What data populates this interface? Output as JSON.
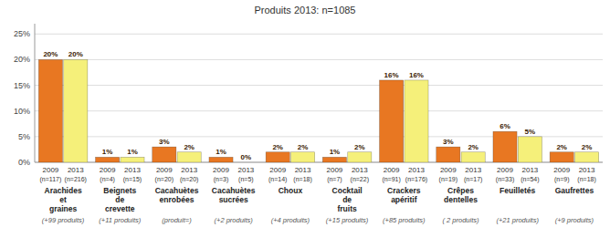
{
  "chart_data": {
    "type": "bar",
    "title": "Produits 2013: n=1085",
    "categories": [
      "Arachides\net\ngraines",
      "Beignets\nde\ncrevette",
      "Cacahuètes\nenrobées",
      "Cacahuètes\nsucrées",
      "Choux",
      "Cocktail\nde\nfruits",
      "Crackers\napéritif",
      "Crêpes\ndentelles",
      "Feuilletés",
      "Gaufrettes"
    ],
    "extra_labels": [
      "(+99 produits)",
      "(+11 produits)",
      "(produit=)",
      "(+2 produits)",
      "(+4 produits)",
      "(+15 produits)",
      "(+85 produits)",
      "( 2 produits)",
      "(+21 produits)",
      "(+9 produits)"
    ],
    "series": [
      {
        "name": "2009",
        "color": "#E87722",
        "values": [
          0.2,
          0.01,
          0.03,
          0.01,
          0.02,
          0.01,
          0.16,
          0.03,
          0.06,
          0.02
        ],
        "value_labels": [
          "20%",
          "1%",
          "3%",
          "1%",
          "2%",
          "1%",
          "16%",
          "3%",
          "6%",
          "2%"
        ],
        "sub_labels": [
          "(n=117)",
          "(n=4)",
          "(n=20)",
          "(n=3)",
          "(n=14)",
          "(n=7)",
          "(n=91)",
          "(n=19)",
          "(n=33)",
          "(n=9)"
        ]
      },
      {
        "name": "2013",
        "color": "#F5F07A",
        "values": [
          0.2,
          0.01,
          0.02,
          0.0,
          0.02,
          0.02,
          0.16,
          0.02,
          0.05,
          0.02
        ],
        "value_labels": [
          "20%",
          "1%",
          "2%",
          "0%",
          "2%",
          "2%",
          "16%",
          "2%",
          "5%",
          "2%"
        ],
        "sub_labels": [
          "(n=216)",
          "(n=15)",
          "(n=20)",
          "(n=5)",
          "(n=18)",
          "(n=22)",
          "(n=176)",
          "(n=17)",
          "(n=54)",
          "(n=18)"
        ]
      }
    ],
    "ylim": [
      0,
      0.27
    ],
    "yticks": [
      {
        "value": 0.0,
        "label": "0%"
      },
      {
        "value": 0.05,
        "label": "5%"
      },
      {
        "value": 0.1,
        "label": "10%"
      },
      {
        "value": 0.15,
        "label": "15%"
      },
      {
        "value": 0.2,
        "label": "20%"
      },
      {
        "value": 0.25,
        "label": "25%"
      }
    ],
    "grid": true,
    "data_labels": true
  }
}
